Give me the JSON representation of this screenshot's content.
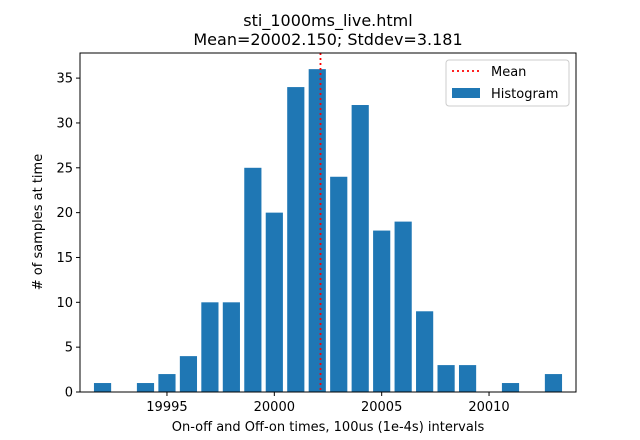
{
  "chart_data": {
    "type": "bar",
    "title": "sti_1000ms_live.html",
    "subtitle": "Mean=20002.150; Stddev=3.181",
    "xlabel": "On-off and Off-on times, 100us (1e-4s) intervals",
    "ylabel": "# of samples at time",
    "xlim": [
      19990.95,
      20014.05
    ],
    "ylim": [
      0,
      37.8
    ],
    "xticks": [
      19995,
      20000,
      20005,
      20010
    ],
    "yticks": [
      0,
      5,
      10,
      15,
      20,
      25,
      30,
      35
    ],
    "x": [
      19992,
      19993,
      19994,
      19995,
      19996,
      19997,
      19998,
      19999,
      20000,
      20001,
      20002,
      20003,
      20004,
      20005,
      20006,
      20007,
      20008,
      20009,
      20010,
      20011,
      20012,
      20013
    ],
    "values": [
      1,
      0,
      1,
      2,
      4,
      10,
      10,
      25,
      20,
      34,
      36,
      24,
      32,
      18,
      19,
      9,
      3,
      3,
      0,
      1,
      0,
      2
    ],
    "mean": 20002.15,
    "bar_color": "#1f77b4",
    "mean_color": "#ff0000",
    "legend": {
      "placement": "top-right",
      "entries": [
        "Mean",
        "Histogram"
      ]
    },
    "grid": false
  }
}
